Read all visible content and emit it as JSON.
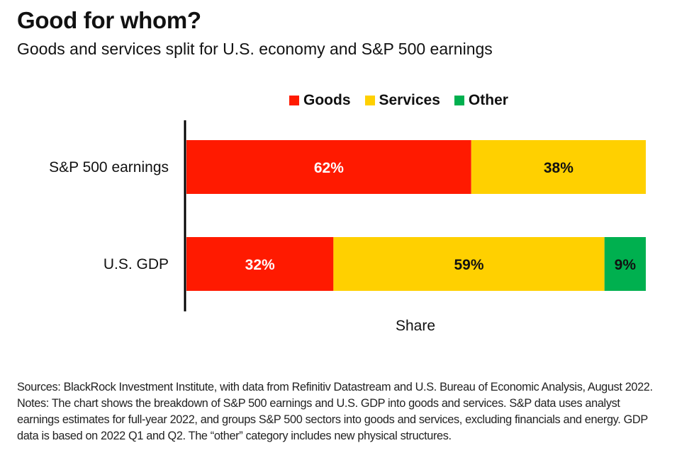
{
  "title": "Good for whom?",
  "subtitle": "Goods and services split for U.S. economy and S&P 500 earnings",
  "colors": {
    "goods": "#ff1a00",
    "services": "#ffd000",
    "other": "#00b04f",
    "axis": "#000000"
  },
  "legend": [
    {
      "name": "Goods",
      "color": "#ff1a00"
    },
    {
      "name": "Services",
      "color": "#ffd000"
    },
    {
      "name": "Other",
      "color": "#00b04f"
    }
  ],
  "chart_data": {
    "type": "bar",
    "orientation": "horizontal",
    "stacked": true,
    "categories": [
      "S&P 500 earnings",
      "U.S. GDP"
    ],
    "series": [
      {
        "name": "Goods",
        "values": [
          62,
          32
        ],
        "labels": [
          "62%",
          "32%"
        ],
        "color": "#ff1a00"
      },
      {
        "name": "Services",
        "values": [
          38,
          59
        ],
        "labels": [
          "38%",
          "59%"
        ],
        "color": "#ffd000"
      },
      {
        "name": "Other",
        "values": [
          0,
          9
        ],
        "labels": [
          "",
          "9%"
        ],
        "color": "#00b04f"
      }
    ],
    "xlabel": "Share",
    "xlim": [
      0,
      100
    ],
    "grid": false,
    "legend_position": "top"
  },
  "notes": "Sources: BlackRock Investment Institute, with data from Refinitiv Datastream and U.S. Bureau of Economic Analysis, August 2022. Notes: The chart shows the breakdown of S&P 500 earnings and U.S. GDP into goods and services. S&P data uses analyst earnings estimates for full-year 2022, and groups S&P 500 sectors into goods and services, excluding financials and energy. GDP data is based on 2022 Q1 and Q2. The “other” category includes new physical structures."
}
